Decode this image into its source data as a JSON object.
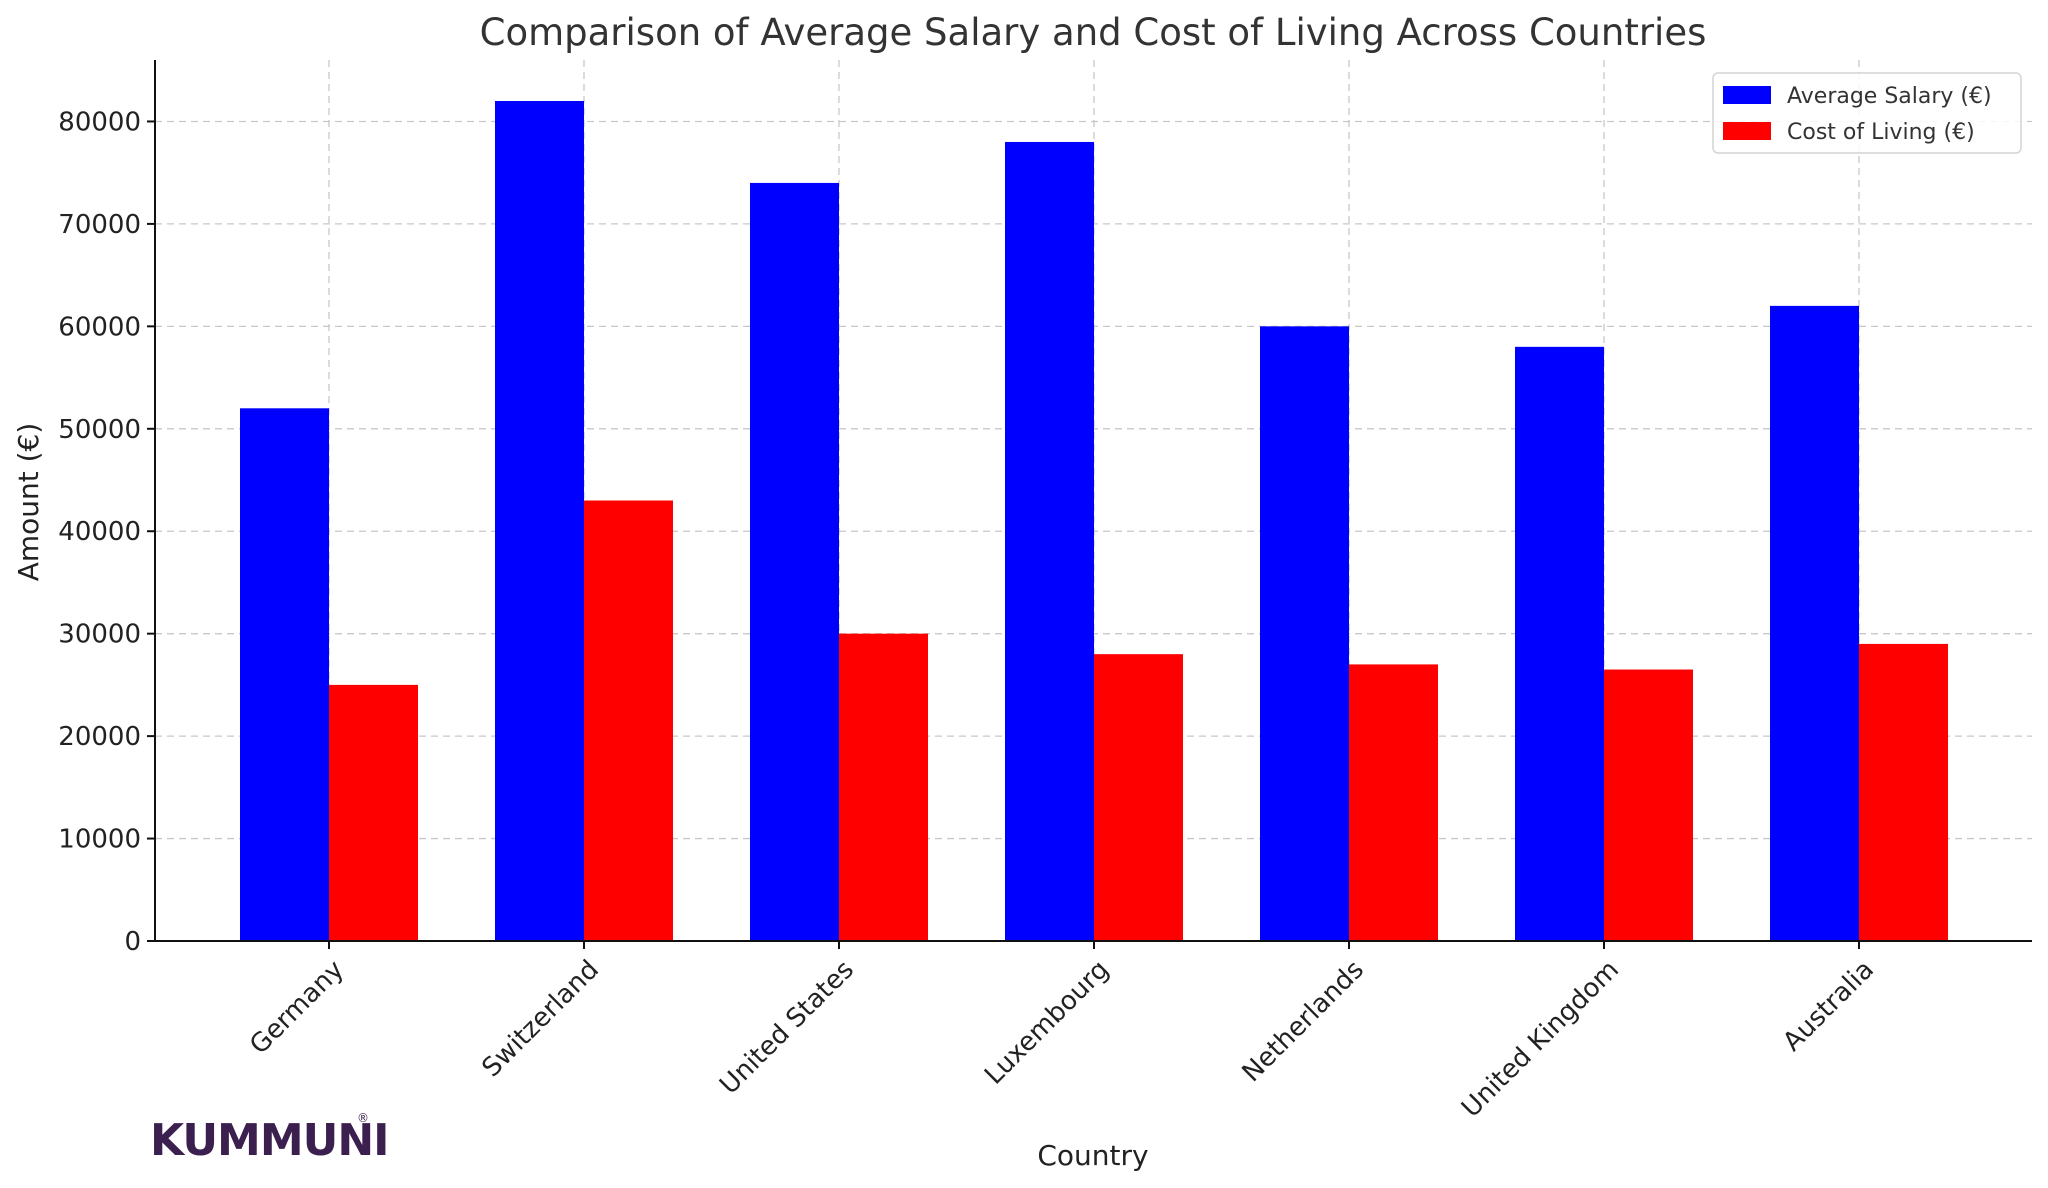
{
  "chart_data": {
    "type": "bar",
    "title": "Comparison of Average Salary and Cost of Living Across Countries",
    "xlabel": "Country",
    "ylabel": "Amount (€)",
    "categories": [
      "Germany",
      "Switzerland",
      "United States",
      "Luxembourg",
      "Netherlands",
      "United Kingdom",
      "Australia"
    ],
    "series": [
      {
        "name": "Average Salary (€)",
        "color": "#0000ff",
        "values": [
          52000,
          82000,
          74000,
          78000,
          60000,
          58000,
          62000
        ]
      },
      {
        "name": "Cost of Living (€)",
        "color": "#ff0000",
        "values": [
          25000,
          43000,
          30000,
          28000,
          27000,
          26500,
          29000
        ]
      }
    ],
    "ylim": [
      0,
      86000
    ],
    "yticks": [
      0,
      10000,
      20000,
      30000,
      40000,
      50000,
      60000,
      70000,
      80000
    ],
    "grid": true,
    "legend": "top-right",
    "x_tick_rotation_deg": 45
  },
  "branding": {
    "logo_text": "KUMMUNI",
    "logo_mark": "®",
    "logo_color": "#3b1f4f"
  }
}
